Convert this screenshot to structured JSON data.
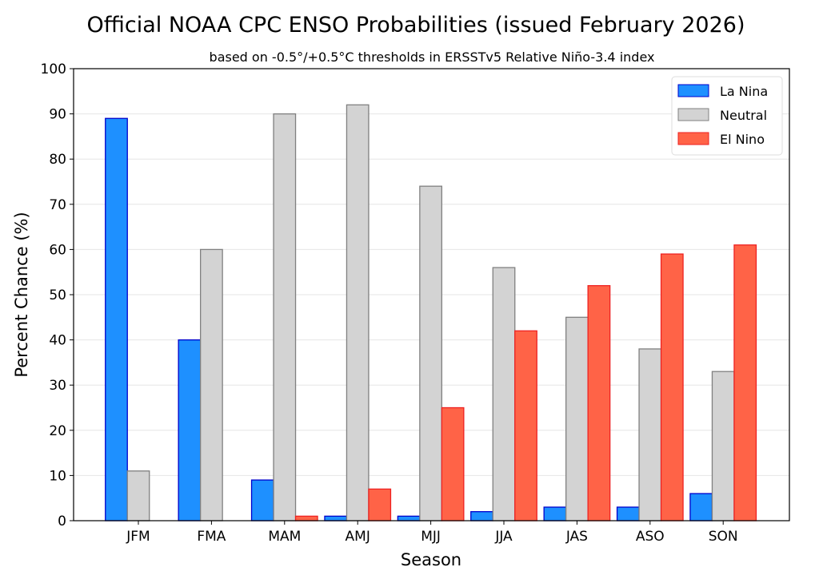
{
  "chart_data": {
    "type": "bar",
    "title": "Official NOAA CPC ENSO Probabilities (issued February 2026)",
    "subtitle": "based on -0.5°/+0.5°C thresholds in ERSSTv5 Relative Niño-3.4 index",
    "xlabel": "Season",
    "ylabel": "Percent Chance (%)",
    "ylim": [
      0,
      100
    ],
    "yticks": [
      0,
      10,
      20,
      30,
      40,
      50,
      60,
      70,
      80,
      90,
      100
    ],
    "grid": "horizontal",
    "legend_position": "top-right",
    "categories": [
      "JFM",
      "FMA",
      "MAM",
      "AMJ",
      "MJJ",
      "JJA",
      "JAS",
      "ASO",
      "SON"
    ],
    "series": [
      {
        "name": "La Nina",
        "color": "#1e90ff",
        "edge": "#0000cc",
        "values": [
          89,
          40,
          9,
          1,
          1,
          2,
          3,
          3,
          6
        ]
      },
      {
        "name": "Neutral",
        "color": "#d3d3d3",
        "edge": "#808080",
        "values": [
          11,
          60,
          90,
          92,
          74,
          56,
          45,
          38,
          33
        ]
      },
      {
        "name": "El Nino",
        "color": "#ff6347",
        "edge": "#ee2222",
        "values": [
          0,
          0,
          1,
          7,
          25,
          42,
          52,
          59,
          61
        ]
      }
    ]
  }
}
